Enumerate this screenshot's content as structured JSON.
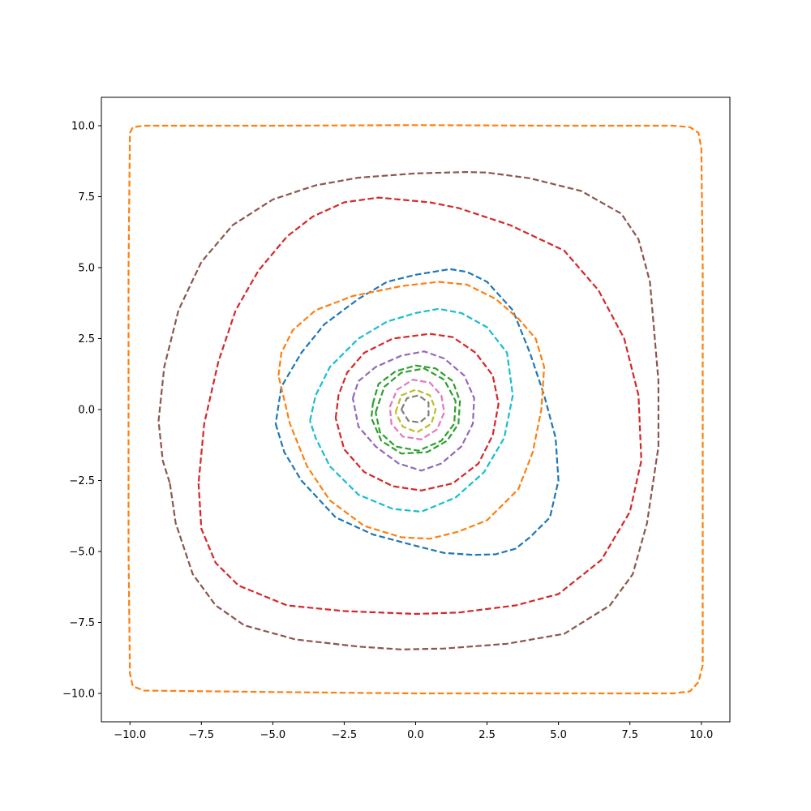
{
  "chart_data": {
    "type": "line",
    "title": "",
    "xlabel": "",
    "ylabel": "",
    "xlim": [
      -11,
      11
    ],
    "ylim": [
      -11,
      11
    ],
    "grid": false,
    "legend": "none",
    "line_style": "dashed",
    "x_ticks": [
      -10,
      -7.5,
      -5,
      -2.5,
      0,
      2.5,
      5,
      7.5,
      10
    ],
    "x_tick_labels": [
      "−10.0",
      "−7.5",
      "−5.0",
      "−2.5",
      "0.0",
      "2.5",
      "5.0",
      "7.5",
      "10.0"
    ],
    "y_ticks": [
      10,
      7.5,
      5,
      2.5,
      0,
      -2.5,
      -5,
      -7.5,
      -10
    ],
    "y_tick_labels": [
      "10.0",
      "7.5",
      "5.0",
      "2.5",
      "0.0",
      "−2.5",
      "−5.0",
      "−7.5",
      "−10.0"
    ],
    "series": [
      {
        "color": "#ff7f0e",
        "points": [
          [
            -10.0,
            9.75
          ],
          [
            -9.9,
            9.95
          ],
          [
            -9.5,
            10.0
          ],
          [
            -5.0,
            10.0
          ],
          [
            0.0,
            10.02
          ],
          [
            5.0,
            10.0
          ],
          [
            9.0,
            10.0
          ],
          [
            9.6,
            9.95
          ],
          [
            9.9,
            9.75
          ],
          [
            10.0,
            9.2
          ],
          [
            10.05,
            5.0
          ],
          [
            10.05,
            0.0
          ],
          [
            10.05,
            -5.0
          ],
          [
            10.05,
            -9.0
          ],
          [
            9.9,
            -9.6
          ],
          [
            9.6,
            -9.93
          ],
          [
            9.0,
            -10.0
          ],
          [
            5.0,
            -10.0
          ],
          [
            0.0,
            -10.0
          ],
          [
            -5.0,
            -9.95
          ],
          [
            -9.5,
            -9.9
          ],
          [
            -9.9,
            -9.75
          ],
          [
            -10.0,
            -9.3
          ],
          [
            -10.05,
            -5.0
          ],
          [
            -10.05,
            0.0
          ],
          [
            -10.05,
            5.0
          ],
          [
            -10.0,
            9.75
          ]
        ]
      },
      {
        "color": "#8c564b",
        "points": [
          [
            -8.6,
            -2.6
          ],
          [
            -8.4,
            -4.0
          ],
          [
            -7.8,
            -5.8
          ],
          [
            -7.0,
            -6.9
          ],
          [
            -6.0,
            -7.6
          ],
          [
            -4.2,
            -8.1
          ],
          [
            -2.0,
            -8.35
          ],
          [
            -0.5,
            -8.45
          ],
          [
            1.0,
            -8.42
          ],
          [
            3.2,
            -8.25
          ],
          [
            5.2,
            -7.9
          ],
          [
            6.8,
            -6.9
          ],
          [
            7.6,
            -5.8
          ],
          [
            8.1,
            -4.0
          ],
          [
            8.5,
            -1.3
          ],
          [
            8.5,
            1.0
          ],
          [
            8.2,
            4.5
          ],
          [
            7.8,
            6.0
          ],
          [
            7.2,
            6.9
          ],
          [
            5.8,
            7.7
          ],
          [
            4.0,
            8.15
          ],
          [
            2.5,
            8.35
          ],
          [
            1.8,
            8.37
          ],
          [
            0.0,
            8.32
          ],
          [
            -2.0,
            8.17
          ],
          [
            -3.5,
            7.9
          ],
          [
            -5.0,
            7.4
          ],
          [
            -6.4,
            6.5
          ],
          [
            -7.5,
            5.2
          ],
          [
            -8.3,
            3.5
          ],
          [
            -8.8,
            1.5
          ],
          [
            -9.0,
            -0.4
          ],
          [
            -8.85,
            -1.8
          ],
          [
            -8.6,
            -2.6
          ]
        ]
      },
      {
        "color": "#d62728",
        "points": [
          [
            -7.6,
            -2.6
          ],
          [
            -7.5,
            -4.2
          ],
          [
            -7.0,
            -5.4
          ],
          [
            -6.2,
            -6.2
          ],
          [
            -4.5,
            -6.9
          ],
          [
            -2.5,
            -7.1
          ],
          [
            0.0,
            -7.2
          ],
          [
            1.5,
            -7.15
          ],
          [
            3.5,
            -6.9
          ],
          [
            5.0,
            -6.5
          ],
          [
            6.5,
            -5.3
          ],
          [
            7.5,
            -3.6
          ],
          [
            7.9,
            -1.8
          ],
          [
            7.8,
            0.5
          ],
          [
            7.3,
            2.5
          ],
          [
            6.4,
            4.2
          ],
          [
            5.2,
            5.6
          ],
          [
            3.3,
            6.5
          ],
          [
            1.5,
            7.1
          ],
          [
            0.5,
            7.3
          ],
          [
            -1.3,
            7.47
          ],
          [
            -2.5,
            7.3
          ],
          [
            -3.6,
            6.8
          ],
          [
            -4.5,
            6.1
          ],
          [
            -5.5,
            4.9
          ],
          [
            -6.3,
            3.5
          ],
          [
            -6.9,
            1.7
          ],
          [
            -7.4,
            -0.5
          ],
          [
            -7.6,
            -2.6
          ]
        ]
      },
      {
        "color": "#1f77b4",
        "points": [
          [
            -4.9,
            -0.5
          ],
          [
            -4.6,
            -1.5
          ],
          [
            -4.0,
            -2.5
          ],
          [
            -2.8,
            -3.8
          ],
          [
            -1.5,
            -4.4
          ],
          [
            0.0,
            -4.8
          ],
          [
            1.0,
            -5.05
          ],
          [
            2.0,
            -5.12
          ],
          [
            2.8,
            -5.1
          ],
          [
            3.5,
            -4.9
          ],
          [
            4.0,
            -4.5
          ],
          [
            4.7,
            -3.8
          ],
          [
            5.0,
            -2.5
          ],
          [
            4.9,
            -1.0
          ],
          [
            4.5,
            0.5
          ],
          [
            4.0,
            2.0
          ],
          [
            3.4,
            3.5
          ],
          [
            2.5,
            4.5
          ],
          [
            1.8,
            4.85
          ],
          [
            1.2,
            4.95
          ],
          [
            0.0,
            4.75
          ],
          [
            -1.0,
            4.5
          ],
          [
            -2.0,
            3.9
          ],
          [
            -3.2,
            3.0
          ],
          [
            -4.0,
            2.0
          ],
          [
            -4.7,
            0.8
          ],
          [
            -4.9,
            -0.5
          ]
        ]
      },
      {
        "color": "#ff7f0e",
        "points": [
          [
            -4.8,
            1.2
          ],
          [
            -4.7,
            2.0
          ],
          [
            -4.3,
            2.8
          ],
          [
            -3.5,
            3.5
          ],
          [
            -2.2,
            4.0
          ],
          [
            -0.5,
            4.35
          ],
          [
            0.8,
            4.5
          ],
          [
            1.8,
            4.4
          ],
          [
            2.8,
            3.9
          ],
          [
            3.6,
            3.2
          ],
          [
            4.2,
            2.5
          ],
          [
            4.5,
            1.5
          ],
          [
            4.4,
            0.0
          ],
          [
            4.1,
            -1.5
          ],
          [
            3.6,
            -2.8
          ],
          [
            2.5,
            -3.9
          ],
          [
            1.5,
            -4.3
          ],
          [
            0.5,
            -4.55
          ],
          [
            -0.5,
            -4.5
          ],
          [
            -1.8,
            -4.1
          ],
          [
            -3.0,
            -3.2
          ],
          [
            -3.8,
            -2.0
          ],
          [
            -4.4,
            -0.5
          ],
          [
            -4.8,
            1.2
          ]
        ]
      },
      {
        "color": "#17becf",
        "points": [
          [
            -3.7,
            -0.4
          ],
          [
            -3.5,
            0.5
          ],
          [
            -3.0,
            1.5
          ],
          [
            -2.0,
            2.5
          ],
          [
            -1.0,
            3.1
          ],
          [
            0.0,
            3.4
          ],
          [
            0.8,
            3.55
          ],
          [
            1.6,
            3.4
          ],
          [
            2.5,
            2.9
          ],
          [
            3.2,
            2.0
          ],
          [
            3.4,
            0.5
          ],
          [
            3.1,
            -1.0
          ],
          [
            2.4,
            -2.2
          ],
          [
            1.4,
            -3.1
          ],
          [
            0.2,
            -3.6
          ],
          [
            -0.8,
            -3.5
          ],
          [
            -2.0,
            -3.0
          ],
          [
            -3.0,
            -2.0
          ],
          [
            -3.5,
            -1.0
          ],
          [
            -3.7,
            -0.4
          ]
        ]
      },
      {
        "color": "#d62728",
        "points": [
          [
            -2.8,
            -0.3
          ],
          [
            -2.7,
            0.5
          ],
          [
            -2.4,
            1.3
          ],
          [
            -1.8,
            2.0
          ],
          [
            -0.8,
            2.5
          ],
          [
            0.5,
            2.67
          ],
          [
            1.3,
            2.55
          ],
          [
            2.1,
            2.0
          ],
          [
            2.7,
            1.2
          ],
          [
            2.9,
            0.2
          ],
          [
            2.7,
            -0.9
          ],
          [
            2.2,
            -1.9
          ],
          [
            1.3,
            -2.6
          ],
          [
            0.2,
            -2.85
          ],
          [
            -0.8,
            -2.7
          ],
          [
            -1.8,
            -2.2
          ],
          [
            -2.5,
            -1.4
          ],
          [
            -2.8,
            -0.3
          ]
        ]
      },
      {
        "color": "#9467bd",
        "points": [
          [
            -2.2,
            0.4
          ],
          [
            -2.0,
            1.0
          ],
          [
            -1.4,
            1.5
          ],
          [
            -0.5,
            1.9
          ],
          [
            0.3,
            2.05
          ],
          [
            1.0,
            1.8
          ],
          [
            1.7,
            1.2
          ],
          [
            2.05,
            0.4
          ],
          [
            2.0,
            -0.5
          ],
          [
            1.6,
            -1.3
          ],
          [
            0.9,
            -1.9
          ],
          [
            0.2,
            -2.15
          ],
          [
            -0.6,
            -1.9
          ],
          [
            -1.4,
            -1.3
          ],
          [
            -2.0,
            -0.6
          ],
          [
            -2.2,
            0.4
          ]
        ]
      },
      {
        "color": "#2ca02c",
        "points": [
          [
            -1.5,
            0.2
          ],
          [
            -1.3,
            0.9
          ],
          [
            -0.7,
            1.35
          ],
          [
            0.0,
            1.55
          ],
          [
            0.7,
            1.45
          ],
          [
            1.3,
            1.0
          ],
          [
            1.55,
            0.3
          ],
          [
            1.5,
            -0.5
          ],
          [
            1.1,
            -1.1
          ],
          [
            0.4,
            -1.5
          ],
          [
            -0.5,
            -1.55
          ],
          [
            -1.2,
            -1.1
          ],
          [
            -1.55,
            -0.3
          ],
          [
            -1.5,
            0.2
          ]
        ]
      },
      {
        "color": "#2ca02c",
        "points": [
          [
            -1.4,
            -0.1
          ],
          [
            -1.1,
            0.8
          ],
          [
            -0.5,
            1.3
          ],
          [
            0.3,
            1.45
          ],
          [
            1.0,
            1.05
          ],
          [
            1.4,
            0.3
          ],
          [
            1.35,
            -0.5
          ],
          [
            0.9,
            -1.1
          ],
          [
            0.1,
            -1.45
          ],
          [
            -0.7,
            -1.3
          ],
          [
            -1.25,
            -0.8
          ],
          [
            -1.4,
            -0.1
          ]
        ]
      },
      {
        "color": "#e377c2",
        "points": [
          [
            -0.9,
            0.1
          ],
          [
            -0.65,
            0.7
          ],
          [
            -0.1,
            1.05
          ],
          [
            0.5,
            0.95
          ],
          [
            0.9,
            0.5
          ],
          [
            1.0,
            -0.1
          ],
          [
            0.75,
            -0.7
          ],
          [
            0.2,
            -1.05
          ],
          [
            -0.45,
            -0.95
          ],
          [
            -0.85,
            -0.5
          ],
          [
            -0.9,
            0.1
          ]
        ]
      },
      {
        "color": "#bcbd22",
        "points": [
          [
            -0.7,
            -0.1
          ],
          [
            -0.5,
            0.5
          ],
          [
            0.0,
            0.7
          ],
          [
            0.5,
            0.5
          ],
          [
            0.7,
            0.0
          ],
          [
            0.55,
            -0.5
          ],
          [
            0.05,
            -0.8
          ],
          [
            -0.45,
            -0.6
          ],
          [
            -0.7,
            -0.1
          ]
        ]
      },
      {
        "color": "#7f7f7f",
        "points": [
          [
            -0.5,
            0.0
          ],
          [
            -0.3,
            0.4
          ],
          [
            0.1,
            0.5
          ],
          [
            0.45,
            0.25
          ],
          [
            0.45,
            -0.2
          ],
          [
            0.15,
            -0.45
          ],
          [
            -0.25,
            -0.4
          ],
          [
            -0.5,
            0.0
          ]
        ]
      }
    ]
  }
}
